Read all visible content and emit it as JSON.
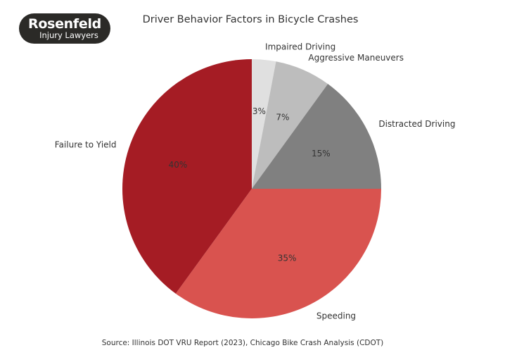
{
  "logo": {
    "line1": "Rosenfeld",
    "line2": "Injury Lawyers"
  },
  "chart_data": {
    "type": "pie",
    "title": "Driver Behavior Factors in Bicycle Crashes",
    "source": "Source: Illinois DOT VRU Report (2023), Chicago Bike Crash Analysis (CDOT)",
    "start": "top",
    "direction": "clockwise",
    "slices": [
      {
        "label": "Impaired Driving",
        "value": 3,
        "pct_label": "3%",
        "color": "#e0e0e0"
      },
      {
        "label": "Aggressive Maneuvers",
        "value": 7,
        "pct_label": "7%",
        "color": "#bdbdbd"
      },
      {
        "label": "Distracted Driving",
        "value": 15,
        "pct_label": "15%",
        "color": "#808080"
      },
      {
        "label": "Speeding",
        "value": 35,
        "pct_label": "35%",
        "color": "#d9534f"
      },
      {
        "label": "Failure to Yield",
        "value": 40,
        "pct_label": "40%",
        "color": "#a51c24"
      }
    ]
  }
}
